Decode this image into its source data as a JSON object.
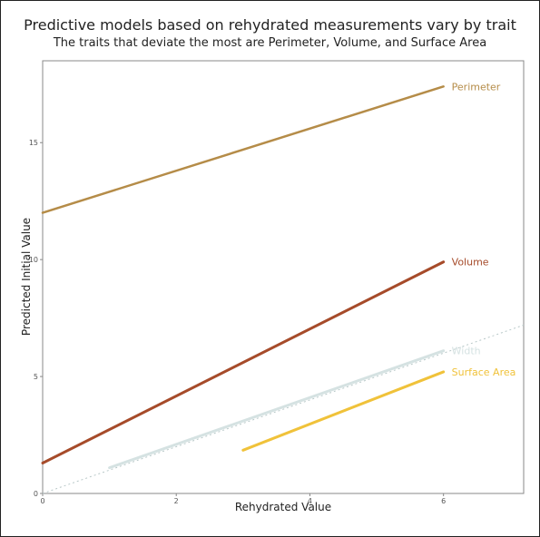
{
  "chart_data": {
    "type": "line",
    "title": "Predictive models based on rehydrated measurements vary by trait",
    "subtitle": "The traits that deviate the most are Perimeter, Volume, and Surface Area",
    "xlabel": "Rehydrated Value",
    "ylabel": "Predicted Initial Value",
    "xlim": [
      0,
      7.2
    ],
    "ylim": [
      0,
      18.5
    ],
    "x_ticks": [
      0,
      2,
      4,
      6
    ],
    "y_ticks": [
      0,
      5,
      10,
      15
    ],
    "grid": false,
    "reference_line": {
      "description": "identity line y = x",
      "style": "dotted",
      "color": "#b8c8c8"
    },
    "series": [
      {
        "name": "Perimeter",
        "x": [
          0,
          6
        ],
        "y": [
          12.0,
          17.4
        ],
        "color": "#b58c48",
        "width": 2.5
      },
      {
        "name": "Volume",
        "x": [
          0,
          6
        ],
        "y": [
          1.3,
          9.9
        ],
        "color": "#a64b2a",
        "width": 3
      },
      {
        "name": "Width",
        "x": [
          1,
          6
        ],
        "y": [
          1.1,
          6.1
        ],
        "color": "#d5e2e2",
        "width": 3
      },
      {
        "name": "Surface Area",
        "x": [
          3,
          6
        ],
        "y": [
          1.85,
          5.2
        ],
        "color": "#f0c23a",
        "width": 3
      }
    ]
  }
}
